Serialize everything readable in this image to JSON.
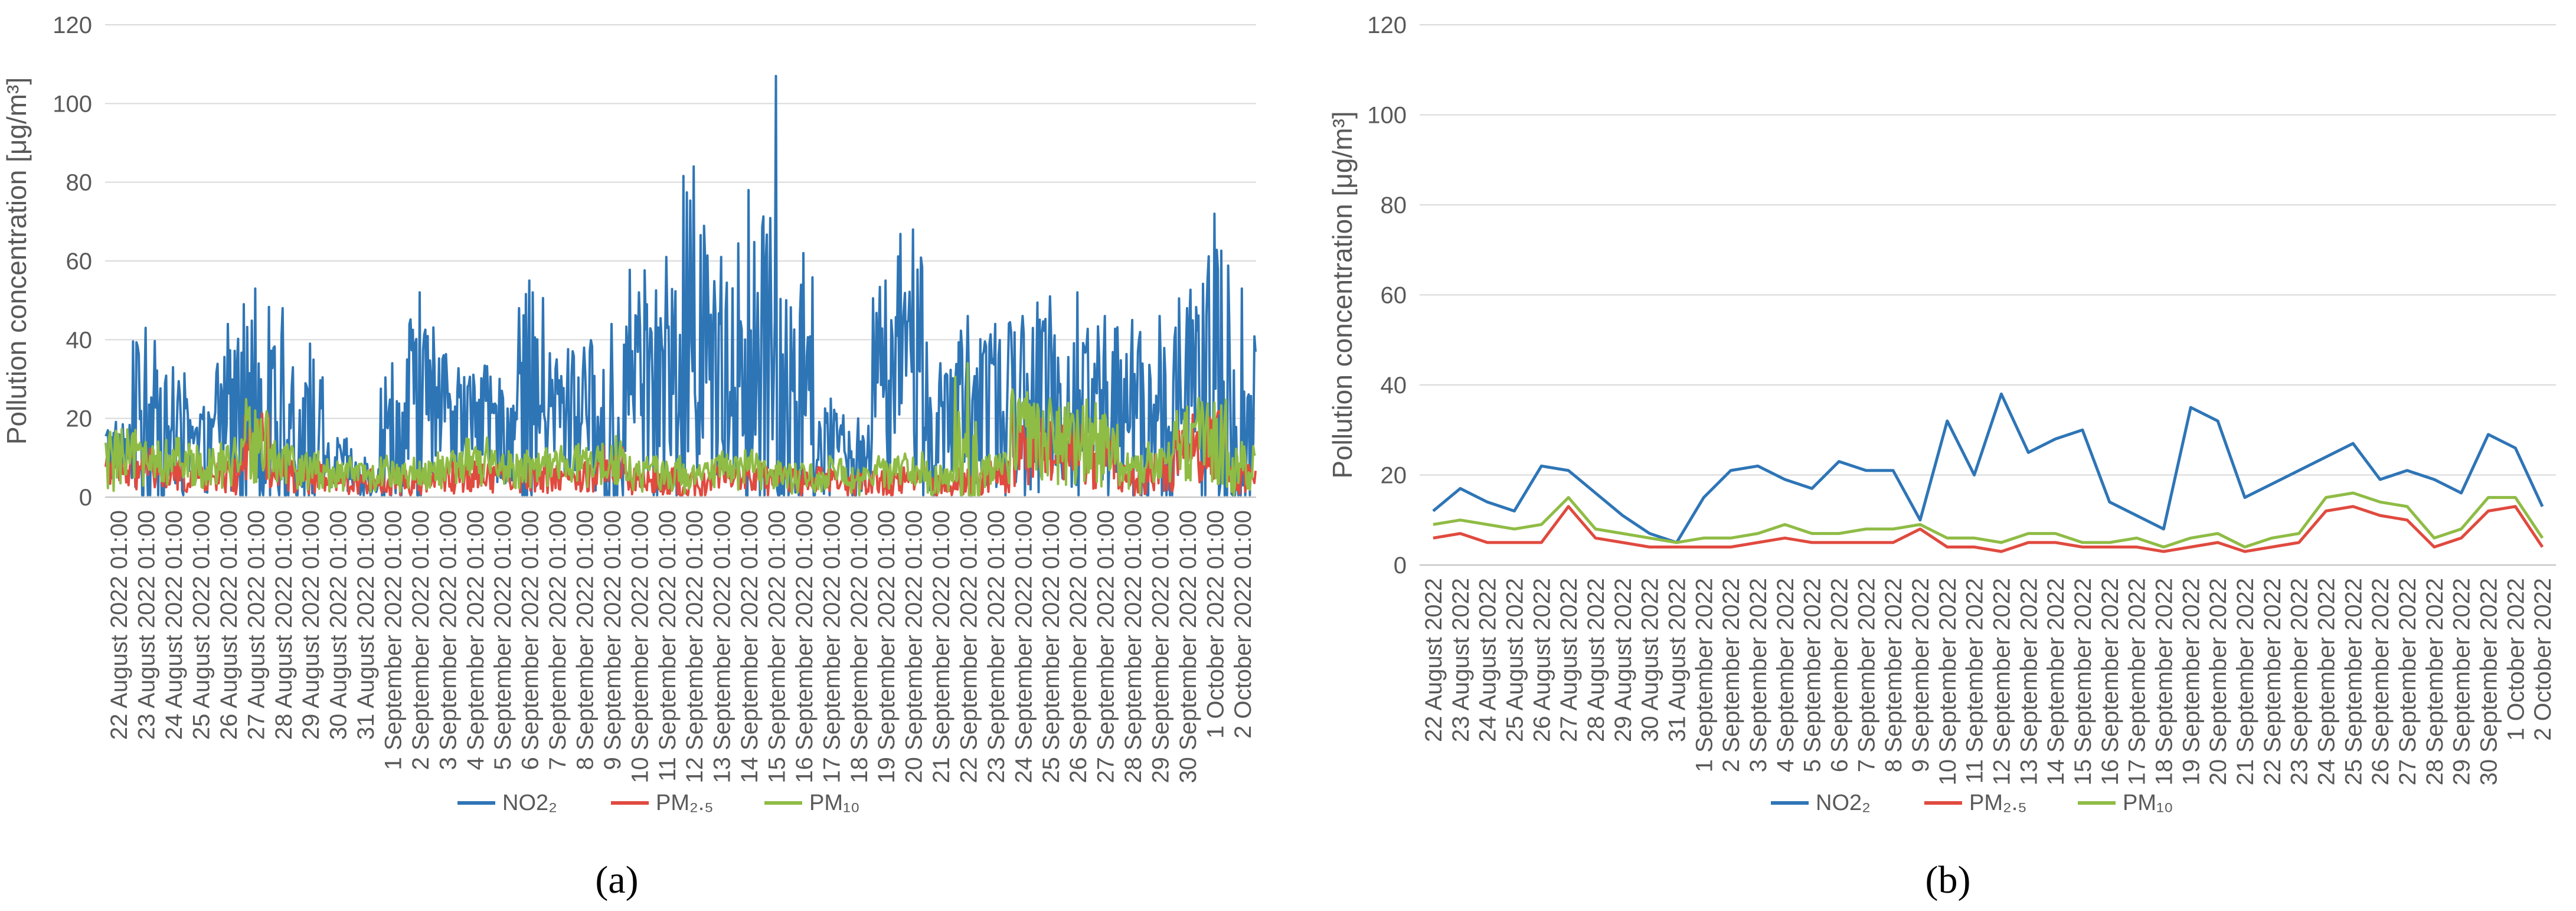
{
  "chart_data": [
    {
      "type": "line",
      "panel_label": "(a)",
      "ylabel": "Pollution concentration [μg/m³]",
      "ylim": [
        0,
        120
      ],
      "yticks": [
        0,
        20,
        40,
        60,
        80,
        100,
        120
      ],
      "legend_position": "bottom",
      "grid": true,
      "interval": "hourly",
      "categories": [
        "22 August 2022 01:00",
        "23 August 2022 01:00",
        "24 August 2022 01:00",
        "25 August 2022 01:00",
        "26 August 2022 01:00",
        "27 August 2022 01:00",
        "28 August 2022 01:00",
        "29 August 2022 01:00",
        "30 August 2022 01:00",
        "31 August 2022 01:00",
        "1 September 2022 01:00",
        "2 September 2022 01:00",
        "3 September 2022 01:00",
        "4 September 2022 01:00",
        "5 September 2022 01:00",
        "6 September 2022 01:00",
        "7 September 2022 01:00",
        "8 September 2022 01:00",
        "9 September 2022 01:00",
        "10 September 2022 01:00",
        "11 September 2022 01:00",
        "12 September 2022 01:00",
        "13 September 2022 01:00",
        "14 September 2022 01:00",
        "15 September 2022 01:00",
        "16 September 2022 01:00",
        "17 September 2022 01:00",
        "18 September 2022 01:00",
        "19 September 2022 01:00",
        "20 September 2022 01:00",
        "21 September 2022 01:00",
        "22 September 2022 01:00",
        "23 September 2022 01:00",
        "24 September 2022 01:00",
        "25 September 2022 01:00",
        "26 September 2022 01:00",
        "27 September 2022 01:00",
        "28 September 2022 01:00",
        "29 September 2022 01:00",
        "30 September 2022 01:00",
        "1 October 2022 01:00",
        "2 October 2022 01:00"
      ],
      "series": [
        {
          "name": "NO2₂",
          "color": "#2e75b6",
          "values": [
            12,
            17,
            14,
            12,
            22,
            21,
            16,
            11,
            7,
            5,
            15,
            21,
            22,
            19,
            17,
            23,
            21,
            21,
            10,
            32,
            20,
            38,
            25,
            28,
            30,
            14,
            11,
            8,
            35,
            32,
            15,
            18,
            21,
            24,
            27,
            19,
            21,
            19,
            16,
            29,
            26,
            13
          ],
          "peaks": [
            16,
            43,
            33,
            21,
            44,
            53,
            48,
            39,
            15,
            10,
            34,
            52,
            30,
            28,
            27,
            55,
            35,
            38,
            44,
            52,
            61,
            84,
            61,
            78,
            107,
            62,
            25,
            20,
            55,
            68,
            34,
            46,
            44,
            46,
            51,
            52,
            46,
            45,
            46,
            48,
            72,
            53
          ]
        },
        {
          "name": "PM₂.₅",
          "color": "#e04a3f",
          "values": [
            6,
            7,
            5,
            5,
            5,
            13,
            6,
            5,
            4,
            4,
            4,
            4,
            5,
            6,
            5,
            5,
            5,
            5,
            8,
            4,
            4,
            3,
            5,
            5,
            4,
            4,
            4,
            3,
            4,
            5,
            3,
            4,
            5,
            12,
            13,
            11,
            10,
            4,
            6,
            12,
            13,
            4
          ],
          "peaks": [
            9,
            11,
            8,
            7,
            9,
            17,
            10,
            8,
            7,
            6,
            7,
            7,
            8,
            9,
            8,
            8,
            8,
            8,
            11,
            7,
            7,
            6,
            8,
            8,
            7,
            7,
            7,
            6,
            7,
            8,
            6,
            7,
            8,
            18,
            19,
            17,
            16,
            8,
            10,
            18,
            19,
            8
          ]
        },
        {
          "name": "PM₁₀",
          "color": "#8fbc45",
          "values": [
            9,
            10,
            9,
            8,
            9,
            15,
            8,
            7,
            6,
            5,
            6,
            6,
            7,
            9,
            7,
            7,
            8,
            8,
            9,
            6,
            6,
            5,
            7,
            7,
            5,
            5,
            6,
            4,
            6,
            7,
            4,
            6,
            7,
            15,
            16,
            14,
            13,
            6,
            8,
            15,
            15,
            6
          ],
          "peaks": [
            16,
            14,
            12,
            11,
            13,
            22,
            12,
            10,
            9,
            8,
            9,
            9,
            10,
            12,
            10,
            10,
            11,
            11,
            13,
            9,
            9,
            8,
            10,
            10,
            8,
            8,
            9,
            7,
            9,
            10,
            8,
            34,
            10,
            24,
            25,
            22,
            21,
            10,
            12,
            23,
            24,
            14
          ]
        }
      ]
    },
    {
      "type": "line",
      "panel_label": "(b)",
      "ylabel": "Pollution concentration [μg/m³]",
      "ylim": [
        0,
        120
      ],
      "yticks": [
        0,
        20,
        40,
        60,
        80,
        100,
        120
      ],
      "legend_position": "bottom",
      "grid": true,
      "interval": "daily",
      "categories": [
        "22 August 2022",
        "23 August 2022",
        "24 August 2022",
        "25 August 2022",
        "26 August 2022",
        "27 August 2022",
        "28 August 2022",
        "29 August 2022",
        "30 August 2022",
        "31 August 2022",
        "1 September 2022",
        "2 September 2022",
        "3 September 2022",
        "4 September 2022",
        "5 September 2022",
        "6 September 2022",
        "7 September 2022",
        "8 September 2022",
        "9 September 2022",
        "10 September 2022",
        "11 September 2022",
        "12 September 2022",
        "13 September 2022",
        "14 September 2022",
        "15 September 2022",
        "16 September 2022",
        "17 September 2022",
        "18 September 2022",
        "19 September 2022",
        "20 September 2022",
        "21 September 2022",
        "22 September 2022",
        "23 September 2022",
        "24 September 2022",
        "25 September 2022",
        "26 September 2022",
        "27 September 2022",
        "28 September 2022",
        "29 September 2022",
        "30 September 2022",
        "1 October 2022",
        "2 October 2022"
      ],
      "series": [
        {
          "name": "NO2₂",
          "color": "#2e75b6",
          "values": [
            12,
            17,
            14,
            12,
            22,
            21,
            16,
            11,
            7,
            5,
            15,
            21,
            22,
            19,
            17,
            23,
            21,
            21,
            10,
            32,
            20,
            38,
            25,
            28,
            30,
            14,
            11,
            8,
            35,
            32,
            15,
            18,
            21,
            24,
            27,
            19,
            21,
            19,
            16,
            29,
            26,
            13
          ]
        },
        {
          "name": "PM₂.₅",
          "color": "#e04a3f",
          "values": [
            6,
            7,
            5,
            5,
            5,
            13,
            6,
            5,
            4,
            4,
            4,
            4,
            5,
            6,
            5,
            5,
            5,
            5,
            8,
            4,
            4,
            3,
            5,
            5,
            4,
            4,
            4,
            3,
            4,
            5,
            3,
            4,
            5,
            12,
            13,
            11,
            10,
            4,
            6,
            12,
            13,
            4
          ]
        },
        {
          "name": "PM₁₀",
          "color": "#8fbc45",
          "values": [
            9,
            10,
            9,
            8,
            9,
            15,
            8,
            7,
            6,
            5,
            6,
            6,
            7,
            9,
            7,
            7,
            8,
            8,
            9,
            6,
            6,
            5,
            7,
            7,
            5,
            5,
            6,
            4,
            6,
            7,
            4,
            6,
            7,
            15,
            16,
            14,
            13,
            6,
            8,
            15,
            15,
            6
          ]
        }
      ]
    }
  ]
}
